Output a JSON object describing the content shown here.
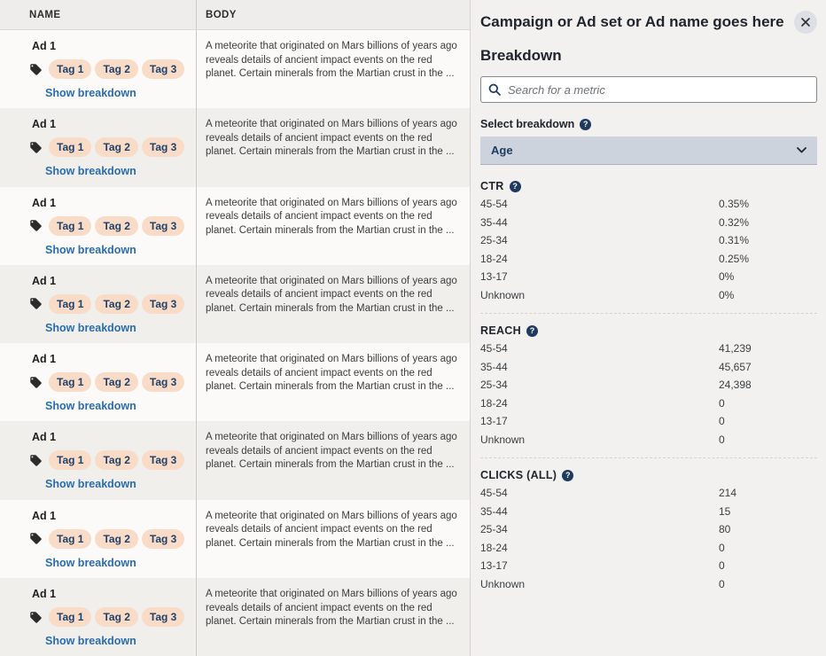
{
  "colors": {
    "accent_link": "#2b6cab",
    "tag_pill_bg": "#f9dcc8",
    "navy_text": "#1d3a5f",
    "panel_bg": "#f2f1ef",
    "row_alt_bg": "#f0efec",
    "table_header_bg": "#eeedeb",
    "dropdown_bg": "#ccd3dc"
  },
  "table": {
    "columns": [
      {
        "label": "NAME"
      },
      {
        "label": "BODY"
      }
    ],
    "row_template": {
      "name": "Ad 1",
      "tags": [
        "Tag 1",
        "Tag 2",
        "Tag 3"
      ],
      "breakdown_link": "Show breakdown",
      "body_lines": [
        "A meteorite that originated on Mars billions of years ago",
        "reveals details of ancient impact events on the red",
        "planet. Certain minerals from the Martian crust in the ..."
      ]
    },
    "rows": [
      {
        "name": "Ad 1",
        "tags": [
          "Tag 1",
          "Tag 2",
          "Tag 3"
        ],
        "breakdown_link": "Show breakdown",
        "body_lines": [
          "A meteorite that originated on Mars billions of years ago",
          "reveals details of ancient impact events on the red",
          "planet. Certain minerals from the Martian crust in the ..."
        ]
      },
      {
        "name": "Ad 1",
        "tags": [
          "Tag 1",
          "Tag 2",
          "Tag 3"
        ],
        "breakdown_link": "Show breakdown",
        "body_lines": [
          "A meteorite that originated on Mars billions of years ago",
          "reveals details of ancient impact events on the red",
          "planet. Certain minerals from the Martian crust in the ..."
        ]
      },
      {
        "name": "Ad 1",
        "tags": [
          "Tag 1",
          "Tag 2",
          "Tag 3"
        ],
        "breakdown_link": "Show breakdown",
        "body_lines": [
          "A meteorite that originated on Mars billions of years ago",
          "reveals details of ancient impact events on the red",
          "planet. Certain minerals from the Martian crust in the ..."
        ]
      },
      {
        "name": "Ad 1",
        "tags": [
          "Tag 1",
          "Tag 2",
          "Tag 3"
        ],
        "breakdown_link": "Show breakdown",
        "body_lines": [
          "A meteorite that originated on Mars billions of years ago",
          "reveals details of ancient impact events on the red",
          "planet. Certain minerals from the Martian crust in the ..."
        ]
      },
      {
        "name": "Ad 1",
        "tags": [
          "Tag 1",
          "Tag 2",
          "Tag 3"
        ],
        "breakdown_link": "Show breakdown",
        "body_lines": [
          "A meteorite that originated on Mars billions of years ago",
          "reveals details of ancient impact events on the red",
          "planet. Certain minerals from the Martian crust in the ..."
        ]
      },
      {
        "name": "Ad 1",
        "tags": [
          "Tag 1",
          "Tag 2",
          "Tag 3"
        ],
        "breakdown_link": "Show breakdown",
        "body_lines": [
          "A meteorite that originated on Mars billions of years ago",
          "reveals details of ancient impact events on the red",
          "planet. Certain minerals from the Martian crust in the ..."
        ]
      },
      {
        "name": "Ad 1",
        "tags": [
          "Tag 1",
          "Tag 2",
          "Tag 3"
        ],
        "breakdown_link": "Show breakdown",
        "body_lines": [
          "A meteorite that originated on Mars billions of years ago",
          "reveals details of ancient impact events on the red",
          "planet. Certain minerals from the Martian crust in the ..."
        ]
      },
      {
        "name": "Ad 1",
        "tags": [
          "Tag 1",
          "Tag 2",
          "Tag 3"
        ],
        "breakdown_link": "Show breakdown",
        "body_lines": [
          "A meteorite that originated on Mars billions of years ago",
          "reveals details of ancient impact events on the red",
          "planet. Certain minerals from the Martian crust in the ..."
        ]
      }
    ]
  },
  "panel": {
    "title": "Campaign or Ad set or Ad name goes here",
    "heading": "Breakdown",
    "help_glyph": "?",
    "search": {
      "placeholder": "Search for a metric",
      "value": ""
    },
    "select_breakdown": {
      "label": "Select breakdown",
      "value": "Age"
    },
    "sections": [
      {
        "label": "CTR",
        "rows": [
          {
            "label": "45-54",
            "value": "0.35%"
          },
          {
            "label": "35-44",
            "value": "0.32%"
          },
          {
            "label": "25-34",
            "value": "0.31%"
          },
          {
            "label": "18-24",
            "value": "0.25%"
          },
          {
            "label": "13-17",
            "value": "0%"
          },
          {
            "label": "Unknown",
            "value": "0%"
          }
        ]
      },
      {
        "label": "REACH",
        "rows": [
          {
            "label": "45-54",
            "value": "41,239"
          },
          {
            "label": "35-44",
            "value": "45,657"
          },
          {
            "label": "25-34",
            "value": "24,398"
          },
          {
            "label": "18-24",
            "value": "0"
          },
          {
            "label": "13-17",
            "value": "0"
          },
          {
            "label": "Unknown",
            "value": "0"
          }
        ]
      },
      {
        "label": "CLICKS (ALL)",
        "rows": [
          {
            "label": "45-54",
            "value": "214"
          },
          {
            "label": "35-44",
            "value": "15"
          },
          {
            "label": "25-34",
            "value": "80"
          },
          {
            "label": "18-24",
            "value": "0"
          },
          {
            "label": "13-17",
            "value": "0"
          },
          {
            "label": "Unknown",
            "value": "0"
          }
        ]
      }
    ]
  }
}
